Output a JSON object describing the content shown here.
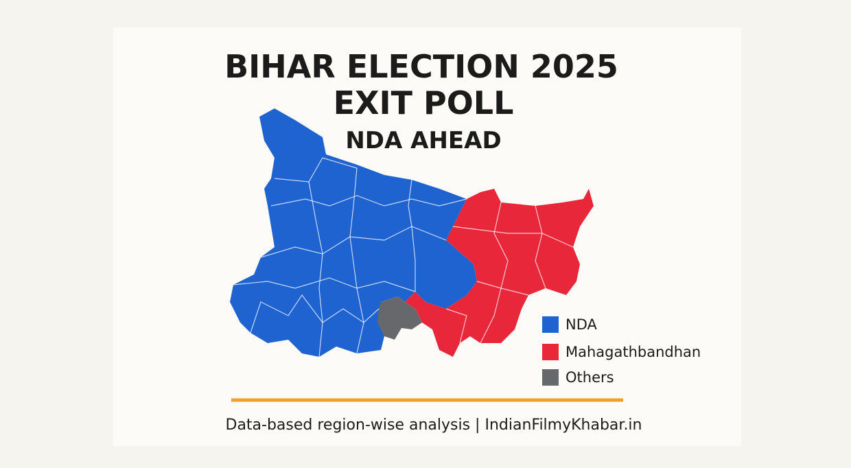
{
  "header": {
    "title_lines": [
      "BIHAR ELECTION 2025",
      "EXIT POLL",
      "NDA AHEAD"
    ]
  },
  "legend": [
    {
      "name": "NDA",
      "color": "#1f63d0"
    },
    {
      "name": "Mahagathbandhan",
      "color": "#e8283a"
    },
    {
      "name": "Others",
      "color": "#66686b"
    }
  ],
  "footer": {
    "text": "Data-based region-wise analysis | IndianFilmyKhabar.in"
  }
}
